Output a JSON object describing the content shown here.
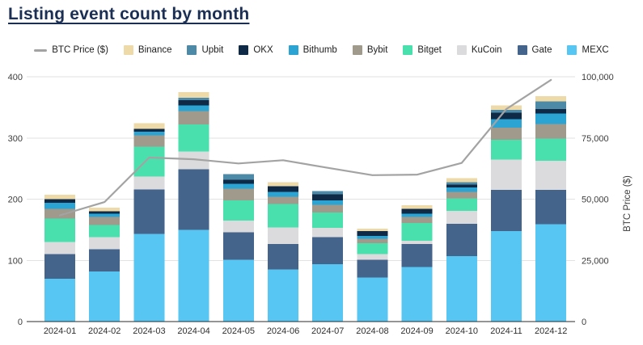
{
  "title": "Listing event count by month",
  "colors": {
    "title": "#1b2f55",
    "background": "#ffffff",
    "axis_text": "#3c3c3c",
    "x_label_text": "#2e2e2e",
    "grid": "#e2e2e2",
    "axis_line": "#2b2b2b",
    "btc_line": "#a3a3a3"
  },
  "legend": {
    "items": [
      {
        "label": "BTC Price ($)",
        "type": "line",
        "color": "#a3a3a3"
      },
      {
        "label": "Binance",
        "type": "swatch",
        "color": "#eed9a9"
      },
      {
        "label": "Upbit",
        "type": "swatch",
        "color": "#4d8aa8"
      },
      {
        "label": "OKX",
        "type": "swatch",
        "color": "#0e2a47"
      },
      {
        "label": "Bithumb",
        "type": "swatch",
        "color": "#2ba4d3"
      },
      {
        "label": "Bybit",
        "type": "swatch",
        "color": "#a09a8d"
      },
      {
        "label": "Bitget",
        "type": "swatch",
        "color": "#4ae0ae"
      },
      {
        "label": "KuCoin",
        "type": "swatch",
        "color": "#dbdbdd"
      },
      {
        "label": "Gate",
        "type": "swatch",
        "color": "#45648c"
      },
      {
        "label": "MEXC",
        "type": "swatch",
        "color": "#58c6f2"
      }
    ]
  },
  "chart_data": {
    "type": "bar",
    "subtype": "stacked-bar-with-line",
    "title": "Listing event count by month",
    "categories": [
      "2024-01",
      "2024-02",
      "2024-03",
      "2024-04",
      "2024-05",
      "2024-06",
      "2024-07",
      "2024-08",
      "2024-09",
      "2024-10",
      "2024-11",
      "2024-12"
    ],
    "series": [
      {
        "name": "MEXC",
        "color": "#58c6f2",
        "values": [
          70,
          82,
          143,
          150,
          101,
          85,
          94,
          72,
          89,
          107,
          148,
          159
        ]
      },
      {
        "name": "Gate",
        "color": "#45648c",
        "values": [
          40,
          36,
          73,
          99,
          45,
          42,
          44,
          29,
          38,
          53,
          67,
          56
        ]
      },
      {
        "name": "KuCoin",
        "color": "#dbdbdd",
        "values": [
          20,
          20,
          21,
          29,
          19,
          27,
          15,
          9,
          5,
          21,
          50,
          48
        ]
      },
      {
        "name": "Bitget",
        "color": "#4ae0ae",
        "values": [
          38,
          20,
          49,
          44,
          33,
          38,
          25,
          18,
          29,
          20,
          32,
          36
        ]
      },
      {
        "name": "Bybit",
        "color": "#a09a8d",
        "values": [
          16,
          13,
          18,
          22,
          19,
          12,
          13,
          7,
          10,
          11,
          20,
          24
        ]
      },
      {
        "name": "Bithumb",
        "color": "#2ba4d3",
        "values": [
          10,
          5,
          6,
          9,
          8,
          8,
          7,
          5,
          5,
          7,
          14,
          17
        ]
      },
      {
        "name": "OKX",
        "color": "#0e2a47",
        "values": [
          6,
          4,
          5,
          9,
          7,
          9,
          10,
          8,
          8,
          5,
          10,
          7
        ]
      },
      {
        "name": "Upbit",
        "color": "#4d8aa8",
        "values": [
          0,
          0,
          0,
          4,
          9,
          0,
          5,
          0,
          0,
          4,
          5,
          13
        ]
      },
      {
        "name": "Binance",
        "color": "#eed9a9",
        "values": [
          7,
          6,
          9,
          9,
          0,
          7,
          0,
          4,
          6,
          6,
          7,
          8
        ]
      }
    ],
    "line_series": {
      "name": "BTC Price ($)",
      "color": "#a3a3a3",
      "values": [
        43400,
        48800,
        67000,
        66300,
        64600,
        65900,
        62800,
        59800,
        60000,
        64800,
        86800,
        98700
      ]
    },
    "left_axis": {
      "ticks": [
        "0",
        "100",
        "200",
        "300",
        "400"
      ],
      "tick_values": [
        0,
        100,
        200,
        300,
        400
      ],
      "range": [
        0,
        400
      ]
    },
    "right_axis": {
      "label": "BTC Price ($)",
      "ticks": [
        "0",
        "25,000",
        "50,000",
        "75,000",
        "100,000"
      ],
      "tick_values": [
        0,
        25000,
        50000,
        75000,
        100000
      ],
      "range": [
        0,
        100000
      ]
    },
    "grid": true,
    "legend_position": "top"
  }
}
